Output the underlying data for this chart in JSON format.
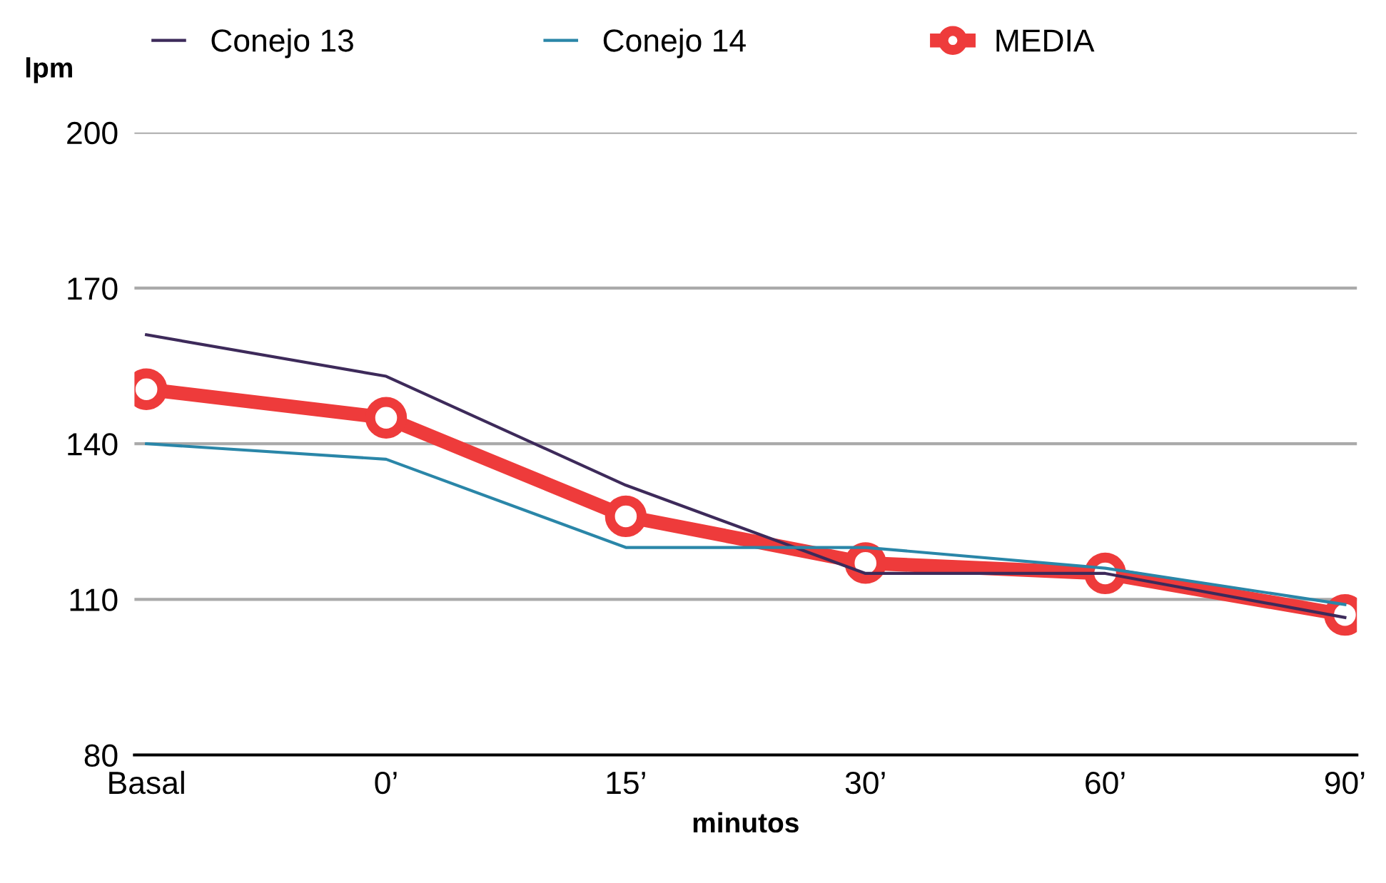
{
  "chart_data": {
    "type": "line",
    "ylabel": "lpm",
    "xlabel": "minutos",
    "categories": [
      "Basal",
      "0’",
      "15’",
      "30’",
      "60’",
      "90’"
    ],
    "series": [
      {
        "name": "Conejo 13",
        "color": "#3d2a5a",
        "marker": "none",
        "values": [
          161,
          153,
          132,
          115,
          115,
          106.5
        ]
      },
      {
        "name": "Conejo 14",
        "color": "#2a86a8",
        "marker": "none",
        "values": [
          140,
          137,
          120,
          120,
          116,
          109
        ]
      },
      {
        "name": "MEDIA",
        "color": "#ee3b3b",
        "marker": "circle",
        "values": [
          150.5,
          145,
          126,
          117,
          115,
          107
        ]
      }
    ],
    "ylim": [
      80,
      200
    ],
    "yticks": [
      80,
      110,
      140,
      170,
      200
    ],
    "grid": "y",
    "legend": "top"
  }
}
